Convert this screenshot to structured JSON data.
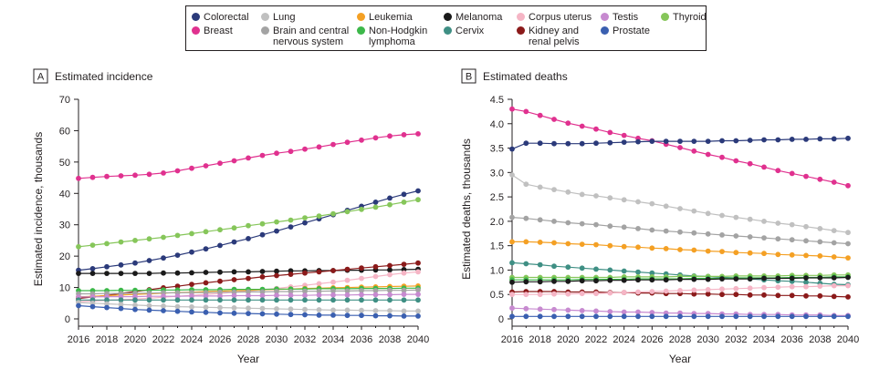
{
  "legend": [
    {
      "name": "Colorectal",
      "color": "#2b3a7a"
    },
    {
      "name": "Breast",
      "color": "#e0318f"
    },
    {
      "name": "Lung",
      "color": "#c0c0c0"
    },
    {
      "name": "Brain and central\nnervous system",
      "color": "#a3a3a3"
    },
    {
      "name": "Leukemia",
      "color": "#f4a024"
    },
    {
      "name": "Non-Hodgkin\nlymphoma",
      "color": "#3db84a"
    },
    {
      "name": "Melanoma",
      "color": "#1a1a1a"
    },
    {
      "name": "Cervix",
      "color": "#3f8f84"
    },
    {
      "name": "Corpus uterus",
      "color": "#f5b5c5"
    },
    {
      "name": "Kidney and\nrenal pelvis",
      "color": "#8b1a1a"
    },
    {
      "name": "Testis",
      "color": "#c78ad0"
    },
    {
      "name": "Prostate",
      "color": "#3a5fb0"
    },
    {
      "name": "Thyroid",
      "color": "#86c65a"
    }
  ],
  "chart_data": [
    {
      "type": "line",
      "panel": "A",
      "title": "Estimated incidence",
      "xlabel": "Year",
      "ylabel": "Estimated incidence, thousands",
      "xlim": [
        2016,
        2040
      ],
      "ylim": [
        0,
        70
      ],
      "xticks": [
        "2016",
        "2018",
        "2020",
        "2022",
        "2024",
        "2026",
        "2028",
        "2030",
        "2032",
        "2034",
        "2036",
        "2038",
        "2040"
      ],
      "yticks": [
        "0",
        "10",
        "20",
        "30",
        "40",
        "50",
        "60",
        "70"
      ],
      "x": [
        2016,
        2017,
        2018,
        2019,
        2020,
        2021,
        2022,
        2023,
        2024,
        2025,
        2026,
        2027,
        2028,
        2029,
        2030,
        2031,
        2032,
        2033,
        2034,
        2035,
        2036,
        2037,
        2038,
        2039,
        2040
      ],
      "series": [
        {
          "name": "Breast",
          "color": "#e0318f",
          "values": [
            44.8,
            45.1,
            45.4,
            45.6,
            45.8,
            46.1,
            46.5,
            47.2,
            48.0,
            48.8,
            49.6,
            50.4,
            51.3,
            52.1,
            52.8,
            53.4,
            54.1,
            54.8,
            55.6,
            56.3,
            57.0,
            57.7,
            58.3,
            58.7,
            59.0
          ]
        },
        {
          "name": "Colorectal",
          "color": "#2b3a7a",
          "values": [
            15.5,
            16.0,
            16.6,
            17.2,
            17.8,
            18.6,
            19.4,
            20.3,
            21.3,
            22.3,
            23.4,
            24.5,
            25.6,
            26.8,
            28.0,
            29.3,
            30.6,
            31.9,
            33.2,
            34.6,
            35.9,
            37.2,
            38.5,
            39.7,
            40.8
          ]
        },
        {
          "name": "Thyroid",
          "color": "#86c65a",
          "values": [
            23.0,
            23.5,
            24.0,
            24.5,
            25.0,
            25.5,
            26.0,
            26.6,
            27.2,
            27.8,
            28.4,
            29.0,
            29.7,
            30.3,
            30.9,
            31.5,
            32.2,
            32.8,
            33.5,
            34.2,
            34.9,
            35.6,
            36.4,
            37.2,
            38.0
          ]
        },
        {
          "name": "Melanoma",
          "color": "#1a1a1a",
          "values": [
            14.5,
            14.5,
            14.5,
            14.5,
            14.5,
            14.5,
            14.6,
            14.6,
            14.7,
            14.8,
            14.9,
            15.0,
            15.0,
            15.1,
            15.2,
            15.3,
            15.3,
            15.4,
            15.4,
            15.5,
            15.5,
            15.6,
            15.6,
            15.7,
            15.8
          ]
        },
        {
          "name": "Kidney and renal pelvis",
          "color": "#8b1a1a",
          "values": [
            6.5,
            7.0,
            7.5,
            8.1,
            8.7,
            9.3,
            9.9,
            10.4,
            11.0,
            11.5,
            12.0,
            12.5,
            12.9,
            13.4,
            13.8,
            14.2,
            14.6,
            15.0,
            15.4,
            15.8,
            16.2,
            16.6,
            17.0,
            17.4,
            17.8
          ]
        },
        {
          "name": "Corpus uterus",
          "color": "#f5b5c5",
          "values": [
            5.5,
            5.7,
            5.9,
            6.1,
            6.3,
            6.6,
            6.9,
            7.2,
            7.5,
            7.8,
            8.1,
            8.5,
            8.9,
            9.3,
            9.7,
            10.2,
            10.7,
            11.2,
            11.7,
            12.3,
            12.9,
            13.5,
            14.1,
            14.6,
            15.0
          ]
        },
        {
          "name": "Leukemia",
          "color": "#f4a024",
          "values": [
            7.0,
            7.2,
            7.4,
            7.6,
            7.8,
            8.0,
            8.2,
            8.4,
            8.5,
            8.7,
            8.8,
            9.0,
            9.1,
            9.3,
            9.4,
            9.5,
            9.7,
            9.8,
            9.9,
            10.0,
            10.1,
            10.2,
            10.3,
            10.4,
            10.5
          ]
        },
        {
          "name": "Non-Hodgkin lymphoma",
          "color": "#3db84a",
          "values": [
            9.0,
            9.0,
            9.0,
            9.1,
            9.1,
            9.1,
            9.2,
            9.2,
            9.3,
            9.3,
            9.3,
            9.4,
            9.4,
            9.4,
            9.5,
            9.5,
            9.5,
            9.6,
            9.6,
            9.6,
            9.7,
            9.7,
            9.7,
            9.8,
            9.8
          ]
        },
        {
          "name": "Brain and central nervous system",
          "color": "#a3a3a3",
          "values": [
            8.0,
            8.0,
            8.1,
            8.1,
            8.2,
            8.2,
            8.3,
            8.3,
            8.4,
            8.4,
            8.5,
            8.5,
            8.6,
            8.6,
            8.7,
            8.7,
            8.8,
            8.8,
            8.9,
            8.9,
            9.0,
            9.0,
            9.1,
            9.1,
            9.2
          ]
        },
        {
          "name": "Testis",
          "color": "#c78ad0",
          "values": [
            7.0,
            7.0,
            7.1,
            7.1,
            7.1,
            7.2,
            7.2,
            7.2,
            7.3,
            7.3,
            7.3,
            7.4,
            7.4,
            7.4,
            7.5,
            7.5,
            7.5,
            7.6,
            7.6,
            7.6,
            7.7,
            7.7,
            7.7,
            7.8,
            7.8
          ]
        },
        {
          "name": "Cervix",
          "color": "#3f8f84",
          "values": [
            6.0,
            6.0,
            6.0,
            6.0,
            6.0,
            6.0,
            6.0,
            6.0,
            6.0,
            6.0,
            6.0,
            6.0,
            6.0,
            6.0,
            6.0,
            6.0,
            6.0,
            6.0,
            6.0,
            6.0,
            6.0,
            6.0,
            6.0,
            6.0,
            6.0
          ]
        },
        {
          "name": "Lung",
          "color": "#c0c0c0",
          "values": [
            5.2,
            5.0,
            4.8,
            4.6,
            4.4,
            4.2,
            4.1,
            3.9,
            3.8,
            3.7,
            3.6,
            3.5,
            3.4,
            3.3,
            3.2,
            3.1,
            3.0,
            2.9,
            2.8,
            2.8,
            2.7,
            2.6,
            2.6,
            2.5,
            2.5
          ]
        },
        {
          "name": "Prostate",
          "color": "#3a5fb0",
          "values": [
            4.2,
            3.9,
            3.6,
            3.3,
            3.0,
            2.8,
            2.6,
            2.4,
            2.2,
            2.1,
            1.9,
            1.8,
            1.7,
            1.6,
            1.5,
            1.4,
            1.3,
            1.2,
            1.2,
            1.1,
            1.1,
            1.0,
            1.0,
            0.9,
            0.9
          ]
        }
      ]
    },
    {
      "type": "line",
      "panel": "B",
      "title": "Estimated deaths",
      "xlabel": "Year",
      "ylabel": "Estimated deaths, thousands",
      "xlim": [
        2016,
        2040
      ],
      "ylim": [
        0,
        4.5
      ],
      "xticks": [
        "2016",
        "2018",
        "2020",
        "2022",
        "2024",
        "2026",
        "2028",
        "2030",
        "2032",
        "2034",
        "2036",
        "2038",
        "2040"
      ],
      "yticks": [
        "0",
        "0.5",
        "1.0",
        "1.5",
        "2.0",
        "2.5",
        "3.0",
        "3.5",
        "4.0",
        "4.5"
      ],
      "x": [
        2016,
        2017,
        2018,
        2019,
        2020,
        2021,
        2022,
        2023,
        2024,
        2025,
        2026,
        2027,
        2028,
        2029,
        2030,
        2031,
        2032,
        2033,
        2034,
        2035,
        2036,
        2037,
        2038,
        2039,
        2040
      ],
      "series": [
        {
          "name": "Breast",
          "color": "#e0318f",
          "values": [
            4.3,
            4.25,
            4.17,
            4.09,
            4.01,
            3.95,
            3.89,
            3.82,
            3.76,
            3.7,
            3.65,
            3.58,
            3.51,
            3.44,
            3.37,
            3.31,
            3.24,
            3.18,
            3.11,
            3.04,
            2.98,
            2.92,
            2.86,
            2.8,
            2.73
          ]
        },
        {
          "name": "Colorectal",
          "color": "#2b3a7a",
          "values": [
            3.48,
            3.6,
            3.6,
            3.59,
            3.59,
            3.59,
            3.6,
            3.61,
            3.62,
            3.63,
            3.64,
            3.64,
            3.64,
            3.64,
            3.64,
            3.65,
            3.65,
            3.66,
            3.67,
            3.67,
            3.68,
            3.68,
            3.69,
            3.69,
            3.7
          ]
        },
        {
          "name": "Lung",
          "color": "#c0c0c0",
          "values": [
            2.95,
            2.76,
            2.7,
            2.65,
            2.6,
            2.55,
            2.52,
            2.48,
            2.44,
            2.4,
            2.36,
            2.31,
            2.26,
            2.21,
            2.16,
            2.12,
            2.08,
            2.04,
            2.0,
            1.96,
            1.93,
            1.89,
            1.85,
            1.81,
            1.77
          ]
        },
        {
          "name": "Brain and central nervous system",
          "color": "#a3a3a3",
          "values": [
            2.08,
            2.06,
            2.03,
            2.0,
            1.97,
            1.95,
            1.93,
            1.9,
            1.88,
            1.85,
            1.82,
            1.8,
            1.78,
            1.76,
            1.74,
            1.72,
            1.7,
            1.68,
            1.66,
            1.64,
            1.62,
            1.6,
            1.58,
            1.56,
            1.54
          ]
        },
        {
          "name": "Leukemia",
          "color": "#f4a024",
          "values": [
            1.58,
            1.58,
            1.57,
            1.56,
            1.54,
            1.53,
            1.52,
            1.5,
            1.48,
            1.47,
            1.45,
            1.44,
            1.42,
            1.41,
            1.39,
            1.38,
            1.36,
            1.35,
            1.34,
            1.32,
            1.31,
            1.3,
            1.29,
            1.27,
            1.25
          ]
        },
        {
          "name": "Cervix",
          "color": "#3f8f84",
          "values": [
            1.15,
            1.13,
            1.11,
            1.08,
            1.06,
            1.04,
            1.02,
            1.0,
            0.98,
            0.96,
            0.94,
            0.92,
            0.9,
            0.88,
            0.87,
            0.85,
            0.84,
            0.82,
            0.8,
            0.78,
            0.77,
            0.75,
            0.73,
            0.71,
            0.7
          ]
        },
        {
          "name": "Thyroid",
          "color": "#86c65a",
          "values": [
            0.85,
            0.85,
            0.85,
            0.85,
            0.85,
            0.85,
            0.85,
            0.85,
            0.86,
            0.86,
            0.86,
            0.86,
            0.87,
            0.87,
            0.87,
            0.87,
            0.88,
            0.88,
            0.88,
            0.88,
            0.89,
            0.89,
            0.89,
            0.9,
            0.9
          ]
        },
        {
          "name": "Non-Hodgkin lymphoma",
          "color": "#3db84a",
          "values": [
            0.8,
            0.8,
            0.8,
            0.8,
            0.8,
            0.81,
            0.81,
            0.81,
            0.81,
            0.82,
            0.82,
            0.82,
            0.82,
            0.83,
            0.83,
            0.83,
            0.84,
            0.84,
            0.84,
            0.84,
            0.85,
            0.85,
            0.85,
            0.86,
            0.86
          ]
        },
        {
          "name": "Melanoma",
          "color": "#1a1a1a",
          "values": [
            0.75,
            0.76,
            0.76,
            0.77,
            0.77,
            0.78,
            0.78,
            0.79,
            0.79,
            0.8,
            0.8,
            0.8,
            0.81,
            0.81,
            0.81,
            0.82,
            0.82,
            0.82,
            0.83,
            0.83,
            0.83,
            0.84,
            0.84,
            0.84,
            0.85
          ]
        },
        {
          "name": "Kidney and renal pelvis",
          "color": "#8b1a1a",
          "values": [
            0.55,
            0.56,
            0.56,
            0.56,
            0.55,
            0.55,
            0.55,
            0.54,
            0.54,
            0.53,
            0.53,
            0.52,
            0.52,
            0.51,
            0.51,
            0.5,
            0.5,
            0.49,
            0.49,
            0.48,
            0.48,
            0.47,
            0.47,
            0.46,
            0.45
          ]
        },
        {
          "name": "Corpus uterus",
          "color": "#f5b5c5",
          "values": [
            0.5,
            0.5,
            0.5,
            0.51,
            0.51,
            0.52,
            0.52,
            0.53,
            0.54,
            0.55,
            0.56,
            0.57,
            0.58,
            0.59,
            0.6,
            0.61,
            0.62,
            0.63,
            0.64,
            0.65,
            0.66,
            0.66,
            0.67,
            0.68,
            0.68
          ]
        },
        {
          "name": "Testis",
          "color": "#c78ad0",
          "values": [
            0.22,
            0.21,
            0.2,
            0.19,
            0.18,
            0.17,
            0.16,
            0.15,
            0.14,
            0.14,
            0.13,
            0.12,
            0.12,
            0.11,
            0.11,
            0.1,
            0.1,
            0.09,
            0.09,
            0.09,
            0.08,
            0.08,
            0.08,
            0.07,
            0.07
          ]
        },
        {
          "name": "Prostate",
          "color": "#3a5fb0",
          "values": [
            0.05,
            0.05,
            0.05,
            0.05,
            0.05,
            0.05,
            0.05,
            0.05,
            0.05,
            0.05,
            0.05,
            0.05,
            0.05,
            0.05,
            0.05,
            0.05,
            0.05,
            0.05,
            0.05,
            0.05,
            0.05,
            0.05,
            0.05,
            0.05,
            0.05
          ]
        }
      ]
    }
  ]
}
